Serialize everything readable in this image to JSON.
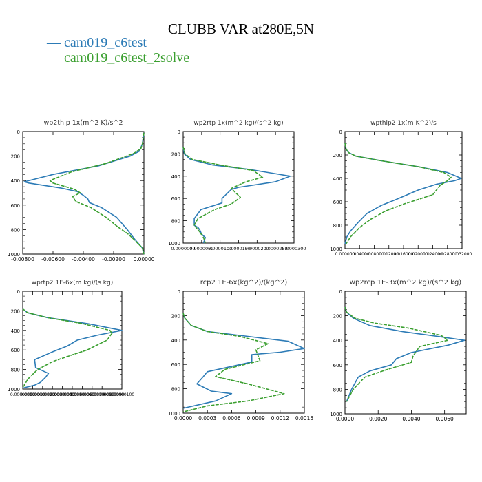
{
  "title": "CLUBB VAR at280E,5N",
  "colors": {
    "series1": "#2c7bb6",
    "series2": "#3a9f2f"
  },
  "legend": [
    {
      "glyph": "—",
      "label": "cam019_c6test",
      "color": "#2c7bb6"
    },
    {
      "glyph": "—",
      "label": "cam019_c6test_2solve",
      "color": "#3a9f2f"
    }
  ],
  "chart_data": [
    {
      "type": "line",
      "title": "wp2thlp   1x(m^2 K)/s^2",
      "xlim": [
        -0.008,
        0.0
      ],
      "ylim": [
        1000,
        0
      ],
      "xticks": [
        -0.008,
        -0.006,
        -0.004,
        -0.002,
        0.0
      ],
      "xtick_labels": [
        "-0.00800",
        "-0.00600",
        "-0.00400",
        "-0.00200",
        "0.00000"
      ],
      "yticks": [
        0,
        200,
        400,
        600,
        800,
        1000
      ],
      "ytick_labels": [
        "0",
        "200",
        "400",
        "600",
        "800",
        "1000"
      ],
      "series": [
        {
          "name": "cam019_c6test",
          "x": [
            0.0,
            -0.0001,
            -0.0003,
            -0.0009,
            -0.003,
            -0.006,
            -0.0079,
            -0.0076,
            -0.0055,
            -0.0044,
            -0.004,
            -0.0037,
            -0.0036,
            -0.0028,
            -0.0018,
            -0.0011,
            -0.0006,
            -0.0001,
            0.0
          ],
          "y": [
            10,
            100,
            160,
            200,
            280,
            350,
            410,
            420,
            460,
            490,
            520,
            550,
            580,
            620,
            700,
            800,
            880,
            950,
            1000
          ]
        },
        {
          "name": "cam019_c6test_2solve",
          "x": [
            0.0,
            -0.0001,
            -0.0002,
            -0.0007,
            -0.0025,
            -0.0048,
            -0.0062,
            -0.006,
            -0.0046,
            -0.0042,
            -0.0047,
            -0.0045,
            -0.0035,
            -0.0025,
            -0.0017,
            -0.001,
            -0.0005,
            -0.0001,
            0.0
          ],
          "y": [
            10,
            100,
            140,
            180,
            260,
            330,
            400,
            420,
            470,
            500,
            530,
            570,
            620,
            700,
            780,
            840,
            900,
            950,
            1000
          ]
        }
      ]
    },
    {
      "type": "line",
      "title": "wp2rtp   1x(m^2 kg)/(s^2 kg)",
      "xlim": [
        0,
        3e-05
      ],
      "ylim": [
        1000,
        0
      ],
      "xticks": [
        0,
        5e-06,
        1e-05,
        1.5e-05,
        2e-05,
        2.5e-05,
        3e-05
      ],
      "xtick_labels": [
        "0.0000000",
        "0.0000050",
        "0.0000100",
        "0.0000150",
        "0.0000200",
        "0.0000250",
        "0.0000300"
      ],
      "yticks": [
        0,
        200,
        400,
        600,
        800,
        1000
      ],
      "ytick_labels": [
        "0",
        "200",
        "400",
        "600",
        "800",
        "1000"
      ],
      "series": [
        {
          "name": "cam019_c6test",
          "x": [
            0.0,
            3e-07,
            2e-06,
            8e-06,
            1.8e-05,
            2.9e-05,
            2.5e-05,
            1.5e-05,
            1.3e-05,
            1.05e-05,
            1.05e-05,
            4.8e-06,
            3e-06,
            3e-06,
            4e-06,
            4.5e-06,
            5e-06,
            6e-06,
            5.5e-06
          ],
          "y": [
            140,
            200,
            250,
            300,
            340,
            400,
            450,
            500,
            520,
            600,
            640,
            700,
            780,
            840,
            860,
            880,
            920,
            950,
            1000
          ]
        },
        {
          "name": "cam019_c6test_2solve",
          "x": [
            0.0,
            5e-07,
            2.5e-06,
            1e-05,
            1.9e-05,
            2.15e-05,
            1.7e-05,
            1.3e-05,
            1.55e-05,
            1.3e-05,
            8.5e-06,
            4e-06,
            3e-06,
            4.5e-06,
            5.5e-06,
            6e-06
          ],
          "y": [
            140,
            200,
            250,
            300,
            350,
            410,
            450,
            510,
            590,
            650,
            700,
            780,
            840,
            900,
            950,
            1000
          ]
        }
      ]
    },
    {
      "type": "line",
      "title": "wpthlp2   1x(m K^2)/s",
      "xlim": [
        0,
        0.032
      ],
      "ylim": [
        1000,
        0
      ],
      "xticks": [
        0,
        0.004,
        0.008,
        0.012,
        0.016,
        0.02,
        0.024,
        0.028,
        0.032
      ],
      "xtick_labels": [
        "0.000000",
        "0.004000",
        "0.008000",
        "0.012000",
        "0.016000",
        "0.020000",
        "0.024000",
        "0.028000",
        "0.032000"
      ],
      "yticks": [
        0,
        200,
        400,
        600,
        800,
        1000
      ],
      "ytick_labels": [
        "0",
        "200",
        "400",
        "600",
        "800",
        "1000"
      ],
      "series": [
        {
          "name": "cam019_c6test",
          "x": [
            0.0,
            0.0003,
            0.001,
            0.003,
            0.01,
            0.02,
            0.028,
            0.0318,
            0.03,
            0.025,
            0.02,
            0.014,
            0.01,
            0.006,
            0.0035,
            0.0015,
            0.0005,
            0.0
          ],
          "y": [
            100,
            150,
            180,
            210,
            250,
            300,
            350,
            400,
            420,
            450,
            500,
            580,
            630,
            700,
            780,
            850,
            900,
            960
          ]
        },
        {
          "name": "cam019_c6test_2solve",
          "x": [
            0.0,
            0.0003,
            0.001,
            0.003,
            0.01,
            0.02,
            0.027,
            0.029,
            0.028,
            0.026,
            0.024,
            0.02,
            0.016,
            0.011,
            0.007,
            0.004,
            0.0015,
            0.0003
          ],
          "y": [
            100,
            150,
            180,
            210,
            250,
            300,
            350,
            390,
            420,
            460,
            540,
            580,
            620,
            680,
            750,
            820,
            900,
            960
          ]
        }
      ]
    },
    {
      "type": "line",
      "title": "wprtp2   1E-6x(m kg)/(s kg)",
      "xlim": [
        0,
        1e-06
      ],
      "ylim": [
        1000,
        0
      ],
      "xticks": [
        0,
        1e-07,
        2e-07,
        3e-07,
        4e-07,
        5e-07,
        6e-07,
        7e-07,
        8e-07,
        9e-07,
        1e-06
      ],
      "xtick_labels": [
        "0.00000000",
        "0.00000010",
        "0.00000020",
        "0.00000030",
        "0.00000040",
        "0.00000050",
        "0.00000060",
        "0.00000070",
        "0.00000080",
        "0.00000090",
        "0.00000100"
      ],
      "yticks": [
        0,
        200,
        400,
        600,
        800,
        1000
      ],
      "ytick_labels": [
        "0",
        "200",
        "400",
        "600",
        "800",
        "1000"
      ],
      "series": [
        {
          "name": "cam019_c6test",
          "x": [
            0.0,
            5e-08,
            2.5e-07,
            6.5e-07,
            1e-06,
            7.5e-07,
            5.5e-07,
            4.5e-07,
            3e-07,
            1.2e-07,
            1.3e-07,
            2.6e-07,
            2.3e-07,
            1.8e-07,
            1.2e-07,
            0.0
          ],
          "y": [
            180,
            220,
            270,
            330,
            400,
            450,
            500,
            560,
            620,
            700,
            780,
            840,
            880,
            930,
            960,
            990
          ]
        },
        {
          "name": "cam019_c6test_2solve",
          "x": [
            0.0,
            5e-08,
            2.5e-07,
            6e-07,
            8.8e-07,
            9e-07,
            8.5e-07,
            6.5e-07,
            5e-07,
            3e-07,
            1.5e-07,
            5e-08,
            0.0
          ],
          "y": [
            180,
            220,
            270,
            330,
            400,
            430,
            500,
            600,
            650,
            720,
            800,
            900,
            990
          ]
        }
      ]
    },
    {
      "type": "line",
      "title": "rcp2   1E-6x(kg^2)/(kg^2)",
      "xlim": [
        0,
        0.0015
      ],
      "ylim": [
        1000,
        0
      ],
      "xticks": [
        0,
        0.0003,
        0.0006,
        0.0009,
        0.0012,
        0.0015
      ],
      "xtick_labels": [
        "0.0000",
        "0.0003",
        "0.0006",
        "0.0009",
        "0.0012",
        "0.0015"
      ],
      "yticks": [
        0,
        200,
        400,
        600,
        800,
        1000
      ],
      "ytick_labels": [
        "0",
        "200",
        "400",
        "600",
        "800",
        "1000"
      ],
      "series": [
        {
          "name": "cam019_c6test",
          "x": [
            0.0,
            2e-05,
            0.0001,
            0.0003,
            0.0008,
            0.0013,
            0.0015,
            0.0012,
            0.00085,
            0.00085,
            0.0003,
            0.00025,
            0.00017,
            0.00035,
            0.0006,
            0.0004,
            0.0
          ],
          "y": [
            180,
            220,
            280,
            330,
            370,
            410,
            470,
            500,
            520,
            580,
            660,
            700,
            760,
            820,
            840,
            900,
            960
          ]
        },
        {
          "name": "cam019_c6test_2solve",
          "x": [
            0.0,
            2e-05,
            0.0001,
            0.0003,
            0.0007,
            0.00105,
            0.0009,
            0.00095,
            0.00052,
            0.0004,
            0.0008,
            0.00125,
            0.0008,
            0.0003,
            0.0
          ],
          "y": [
            180,
            220,
            280,
            330,
            370,
            430,
            480,
            570,
            640,
            700,
            760,
            840,
            900,
            940,
            990
          ]
        }
      ]
    },
    {
      "type": "line",
      "title": "wp2rcp   1E-3x(m^2 kg)/(s^2 kg)",
      "xlim": [
        0,
        0.0073
      ],
      "ylim": [
        1000,
        0
      ],
      "xticks": [
        0,
        0.002,
        0.004,
        0.006
      ],
      "xtick_labels": [
        "0.0000",
        "0.0020",
        "0.0040",
        "0.0060"
      ],
      "yticks": [
        0,
        200,
        400,
        600,
        800,
        1000
      ],
      "ytick_labels": [
        "0",
        "200",
        "400",
        "600",
        "800",
        "1000"
      ],
      "series": [
        {
          "name": "cam019_c6test",
          "x": [
            0.0,
            0.0001,
            0.0005,
            0.0015,
            0.0035,
            0.0057,
            0.0072,
            0.0062,
            0.004,
            0.0031,
            0.0028,
            0.0015,
            0.0008,
            0.0004,
            0.0001
          ],
          "y": [
            130,
            170,
            220,
            280,
            330,
            370,
            400,
            440,
            500,
            550,
            600,
            650,
            700,
            800,
            900
          ]
        },
        {
          "name": "cam019_c6test_2solve",
          "x": [
            0.0,
            0.0001,
            0.0006,
            0.0018,
            0.0038,
            0.0058,
            0.0062,
            0.0045,
            0.0041,
            0.004,
            0.0025,
            0.0012,
            0.0005,
            0.0001
          ],
          "y": [
            130,
            170,
            220,
            260,
            300,
            360,
            400,
            450,
            530,
            580,
            640,
            700,
            800,
            900
          ]
        }
      ]
    }
  ]
}
